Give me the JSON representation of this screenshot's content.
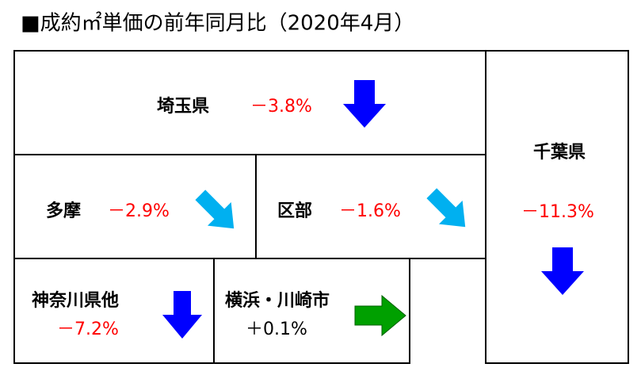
{
  "title": "■成約㎡単価の前年同月比（2020年4月）",
  "regions": [
    {
      "name": "埼玉県",
      "value": "－3.8%"
    },
    {
      "name": "多摩",
      "value": "－2.9%"
    },
    {
      "name": "区部",
      "value": "－1.6%"
    },
    {
      "name": "千葉県",
      "value": "－11.3%"
    },
    {
      "name": "神奈川県他",
      "value": "－7.2%"
    },
    {
      "name": "横浜・川崎市",
      "value": "＋0.1%"
    }
  ]
}
